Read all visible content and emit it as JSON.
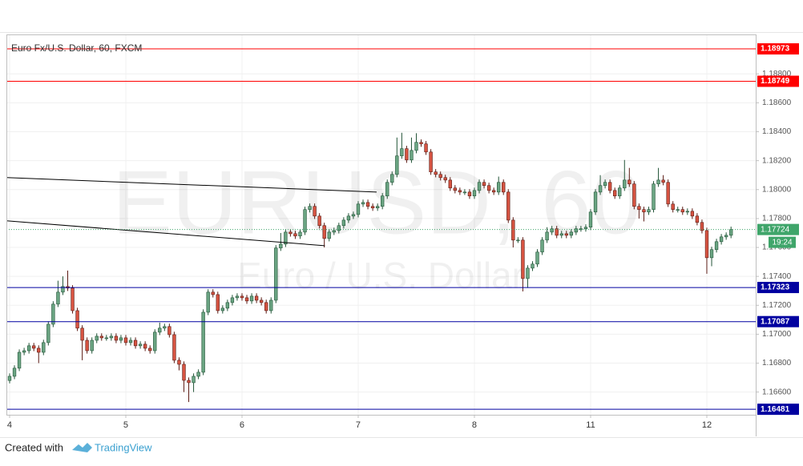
{
  "chart_data": {
    "type": "candlestick",
    "title": "Euro Fx/U.S. Dollar, 60, FXCM",
    "watermark": "EURUSD, 60",
    "watermark_subtitle": "Euro / U.S. Dollar",
    "up_color": "#6ba583",
    "down_color": "#d75442",
    "grid": true,
    "xlim": [
      -0.66,
      154.1
    ],
    "xticks": [
      {
        "value": 0,
        "label": "4"
      },
      {
        "value": 24,
        "label": "5"
      },
      {
        "value": 48,
        "label": "6"
      },
      {
        "value": 72,
        "label": "7"
      },
      {
        "value": 96,
        "label": "8"
      },
      {
        "value": 120,
        "label": "11"
      },
      {
        "value": 144,
        "label": "12"
      }
    ],
    "ylim": [
      1.16443,
      1.19073
    ],
    "yticks": [
      {
        "value": 1.166,
        "label": "1.16600"
      },
      {
        "value": 1.168,
        "label": "1.16800"
      },
      {
        "value": 1.17,
        "label": "1.17000"
      },
      {
        "value": 1.172,
        "label": "1.17200"
      },
      {
        "value": 1.174,
        "label": "1.17400"
      },
      {
        "value": 1.176,
        "label": "1.17600"
      },
      {
        "value": 1.178,
        "label": "1.17800"
      },
      {
        "value": 1.18,
        "label": "1.18000"
      },
      {
        "value": 1.182,
        "label": "1.18200"
      },
      {
        "value": 1.184,
        "label": "1.18400"
      },
      {
        "value": 1.186,
        "label": "1.18600"
      },
      {
        "value": 1.188,
        "label": "1.18800"
      }
    ],
    "x": [
      0,
      1,
      2,
      3,
      4,
      5,
      6,
      7,
      8,
      9,
      10,
      11,
      12,
      13,
      14,
      15,
      16,
      17,
      18,
      19,
      20,
      21,
      22,
      23,
      24,
      25,
      26,
      27,
      28,
      29,
      30,
      31,
      32,
      33,
      34,
      35,
      36,
      37,
      38,
      39,
      40,
      41,
      42,
      43,
      44,
      45,
      46,
      47,
      48,
      49,
      50,
      51,
      52,
      53,
      54,
      55,
      56,
      57,
      58,
      59,
      60,
      61,
      62,
      63,
      64,
      65,
      66,
      67,
      68,
      69,
      70,
      71,
      72,
      73,
      74,
      75,
      76,
      77,
      78,
      79,
      80,
      81,
      82,
      83,
      84,
      85,
      86,
      87,
      88,
      89,
      90,
      91,
      92,
      93,
      94,
      95,
      96,
      97,
      98,
      99,
      100,
      101,
      102,
      103,
      104,
      105,
      106,
      107,
      108,
      109,
      110,
      111,
      112,
      113,
      114,
      115,
      116,
      117,
      118,
      119,
      120,
      121,
      122,
      123,
      124,
      125,
      126,
      127,
      128,
      129,
      130,
      131,
      132,
      133,
      134,
      135,
      136,
      137,
      138,
      139,
      140,
      141,
      142,
      143,
      144,
      145,
      146,
      147,
      148,
      149
    ],
    "open": [
      1.1668,
      1.16709,
      1.16765,
      1.16875,
      1.16886,
      1.1692,
      1.16903,
      1.16875,
      1.16942,
      1.17069,
      1.17208,
      1.17291,
      1.1733,
      1.17319,
      1.17163,
      1.17042,
      1.16958,
      1.16886,
      1.16958,
      1.16986,
      1.16975,
      1.16975,
      1.16986,
      1.16958,
      1.16975,
      1.16942,
      1.16958,
      1.1692,
      1.16931,
      1.16903,
      1.16886,
      1.17014,
      1.17042,
      1.17053,
      1.16997,
      1.1682,
      1.16792,
      1.16681,
      1.16665,
      1.16709,
      1.16737,
      1.17152,
      1.17291,
      1.17274,
      1.17163,
      1.1718,
      1.17219,
      1.17252,
      1.17263,
      1.17252,
      1.1723,
      1.17263,
      1.17235,
      1.17219,
      1.17163,
      1.17235,
      1.17596,
      1.17623,
      1.17706,
      1.17695,
      1.17679,
      1.17706,
      1.17862,
      1.17884,
      1.17817,
      1.17751,
      1.17662,
      1.17706,
      1.17717,
      1.17751,
      1.17789,
      1.17817,
      1.17828,
      1.179,
      1.17911,
      1.17884,
      1.17873,
      1.17884,
      1.17956,
      1.1805,
      1.18105,
      1.18233,
      1.18283,
      1.18205,
      1.18271,
      1.18327,
      1.18316,
      1.1826,
      1.18122,
      1.18105,
      1.18083,
      1.18066,
      1.18011,
      1.17994,
      1.17983,
      1.17983,
      1.17956,
      1.17994,
      1.1805,
      1.18028,
      1.17994,
      1.17983,
      1.1805,
      1.17983,
      1.17789,
      1.17651,
      1.17651,
      1.17385,
      1.17457,
      1.17485,
      1.17568,
      1.17651,
      1.17706,
      1.17729,
      1.17684,
      1.17695,
      1.17684,
      1.17706,
      1.17729,
      1.17729,
      1.1774,
      1.17845,
      1.17983,
      1.18028,
      1.1805,
      1.17994,
      1.17956,
      1.18011,
      1.18066,
      1.18039,
      1.17884,
      1.17862,
      1.17845,
      1.17862,
      1.18039,
      1.18066,
      1.1805,
      1.179,
      1.17862,
      1.17862,
      1.17845,
      1.1785,
      1.17817,
      1.17773,
      1.17717,
      1.17529,
      1.17585,
      1.1764,
      1.17673,
      1.17684
    ],
    "high": [
      1.16729,
      1.16785,
      1.16895,
      1.16906,
      1.1694,
      1.1694,
      1.16923,
      1.16962,
      1.17089,
      1.17228,
      1.1737,
      1.174,
      1.1744,
      1.17339,
      1.17183,
      1.17062,
      1.16978,
      1.16978,
      1.17006,
      1.17006,
      1.16995,
      1.17006,
      1.17006,
      1.16995,
      1.16995,
      1.16978,
      1.16978,
      1.16951,
      1.16951,
      1.16923,
      1.17034,
      1.1708,
      1.17073,
      1.17073,
      1.17017,
      1.1684,
      1.16812,
      1.16701,
      1.16729,
      1.16757,
      1.17172,
      1.17311,
      1.17311,
      1.17294,
      1.172,
      1.17239,
      1.17272,
      1.17283,
      1.17283,
      1.17272,
      1.17283,
      1.17283,
      1.17255,
      1.17239,
      1.17255,
      1.17616,
      1.177,
      1.17726,
      1.17726,
      1.17715,
      1.17726,
      1.17882,
      1.17904,
      1.17904,
      1.17837,
      1.17771,
      1.17726,
      1.17737,
      1.17771,
      1.17809,
      1.17837,
      1.17848,
      1.1792,
      1.17931,
      1.17931,
      1.17904,
      1.17904,
      1.17976,
      1.1807,
      1.18125,
      1.1836,
      1.18393,
      1.18303,
      1.1836,
      1.1839,
      1.18347,
      1.18336,
      1.1828,
      1.18142,
      1.18125,
      1.18103,
      1.18086,
      1.18031,
      1.18014,
      1.18003,
      1.18003,
      1.18014,
      1.1807,
      1.1807,
      1.18048,
      1.18014,
      1.1809,
      1.1807,
      1.18003,
      1.17809,
      1.17671,
      1.17671,
      1.17477,
      1.17505,
      1.17588,
      1.17671,
      1.1774,
      1.17749,
      1.17749,
      1.17715,
      1.17715,
      1.17726,
      1.17749,
      1.17749,
      1.1776,
      1.17865,
      1.18003,
      1.181,
      1.1807,
      1.1807,
      1.18014,
      1.18031,
      1.18205,
      1.1815,
      1.18059,
      1.17904,
      1.17882,
      1.17882,
      1.18059,
      1.1815,
      1.181,
      1.1807,
      1.1792,
      1.17882,
      1.17882,
      1.1787,
      1.1787,
      1.17837,
      1.17793,
      1.17737,
      1.17605,
      1.1766,
      1.17693,
      1.17704,
      1.17744
    ],
    "low": [
      1.1666,
      1.16689,
      1.16745,
      1.16855,
      1.16866,
      1.16883,
      1.168,
      1.16855,
      1.16922,
      1.17049,
      1.17188,
      1.17271,
      1.17299,
      1.17143,
      1.17022,
      1.1682,
      1.16866,
      1.16866,
      1.16938,
      1.16955,
      1.16955,
      1.16955,
      1.16938,
      1.16938,
      1.16922,
      1.16922,
      1.169,
      1.169,
      1.16883,
      1.16866,
      1.16866,
      1.16994,
      1.17022,
      1.16977,
      1.168,
      1.1675,
      1.166,
      1.16531,
      1.166,
      1.16689,
      1.16717,
      1.17132,
      1.17254,
      1.17143,
      1.17143,
      1.1716,
      1.17199,
      1.17232,
      1.17232,
      1.1721,
      1.1721,
      1.17215,
      1.17199,
      1.17143,
      1.17143,
      1.17215,
      1.17576,
      1.17603,
      1.17675,
      1.17659,
      1.17659,
      1.17686,
      1.17842,
      1.17797,
      1.17731,
      1.176,
      1.17642,
      1.17686,
      1.17697,
      1.17731,
      1.17769,
      1.17797,
      1.17808,
      1.1788,
      1.17864,
      1.17853,
      1.17853,
      1.17864,
      1.17936,
      1.1803,
      1.18085,
      1.18213,
      1.18185,
      1.18185,
      1.18251,
      1.18296,
      1.1824,
      1.18102,
      1.18085,
      1.18063,
      1.18046,
      1.17991,
      1.17974,
      1.17963,
      1.17963,
      1.17936,
      1.17936,
      1.17974,
      1.18008,
      1.17974,
      1.17963,
      1.17963,
      1.17963,
      1.17769,
      1.176,
      1.17631,
      1.17296,
      1.1732,
      1.17437,
      1.17465,
      1.17548,
      1.17631,
      1.17686,
      1.17664,
      1.17664,
      1.17664,
      1.17664,
      1.17686,
      1.17709,
      1.17709,
      1.1772,
      1.17825,
      1.17963,
      1.18008,
      1.17974,
      1.17936,
      1.17936,
      1.17991,
      1.18019,
      1.17864,
      1.178,
      1.1778,
      1.17825,
      1.17842,
      1.18019,
      1.1803,
      1.1788,
      1.17842,
      1.17842,
      1.17825,
      1.17825,
      1.17797,
      1.17753,
      1.17697,
      1.17418,
      1.1747,
      1.17565,
      1.1762,
      1.17653,
      1.17664
    ],
    "close": [
      1.16709,
      1.16765,
      1.16875,
      1.16886,
      1.1692,
      1.16903,
      1.16875,
      1.16942,
      1.17069,
      1.17208,
      1.17291,
      1.1733,
      1.17319,
      1.17163,
      1.17042,
      1.16958,
      1.16886,
      1.16958,
      1.16986,
      1.16975,
      1.16975,
      1.16986,
      1.16958,
      1.16975,
      1.16942,
      1.16958,
      1.1692,
      1.16931,
      1.16903,
      1.16886,
      1.17014,
      1.17042,
      1.17053,
      1.16997,
      1.1682,
      1.16792,
      1.16681,
      1.16665,
      1.16709,
      1.16737,
      1.17152,
      1.17291,
      1.17274,
      1.17163,
      1.1718,
      1.17219,
      1.17252,
      1.17263,
      1.17252,
      1.1723,
      1.17263,
      1.17235,
      1.17219,
      1.17163,
      1.17235,
      1.17596,
      1.17623,
      1.17706,
      1.17695,
      1.17679,
      1.17706,
      1.17862,
      1.17884,
      1.17817,
      1.17751,
      1.17662,
      1.17706,
      1.17717,
      1.17751,
      1.17789,
      1.17817,
      1.17828,
      1.179,
      1.17911,
      1.17884,
      1.17873,
      1.17884,
      1.17956,
      1.1805,
      1.18105,
      1.18233,
      1.18283,
      1.18205,
      1.18271,
      1.18327,
      1.18316,
      1.1826,
      1.18122,
      1.18105,
      1.18083,
      1.18066,
      1.18011,
      1.17994,
      1.17983,
      1.17983,
      1.17956,
      1.17994,
      1.1805,
      1.18028,
      1.17994,
      1.17983,
      1.1805,
      1.17983,
      1.17789,
      1.17651,
      1.17651,
      1.17385,
      1.17457,
      1.17485,
      1.17568,
      1.17651,
      1.17706,
      1.17729,
      1.17684,
      1.17695,
      1.17684,
      1.17706,
      1.17729,
      1.17729,
      1.1774,
      1.17845,
      1.17983,
      1.18028,
      1.1805,
      1.17994,
      1.17956,
      1.18011,
      1.18066,
      1.18039,
      1.17884,
      1.17862,
      1.17845,
      1.17862,
      1.18039,
      1.18066,
      1.1805,
      1.179,
      1.17862,
      1.17862,
      1.17845,
      1.1785,
      1.17817,
      1.17773,
      1.17717,
      1.17529,
      1.17585,
      1.1764,
      1.17673,
      1.17684,
      1.17724
    ],
    "levels": [
      {
        "value": 1.18973,
        "color": "#ff0000"
      },
      {
        "value": 1.18749,
        "color": "#ff0000"
      },
      {
        "value": 1.17323,
        "color": "#0000a0"
      },
      {
        "value": 1.17087,
        "color": "#0000a0"
      },
      {
        "value": 1.16481,
        "color": "#0000a0"
      }
    ],
    "last_price": {
      "value": 1.17724,
      "countdown": "19:24",
      "color": "#3fa56a"
    },
    "trendlines": [
      {
        "x": [
          -0.66,
          75.8
        ],
        "y": [
          1.18083,
          1.17983
        ],
        "color": "#000000"
      },
      {
        "x": [
          -0.66,
          65.1
        ],
        "y": [
          1.17784,
          1.17612
        ],
        "color": "#000000"
      }
    ]
  },
  "footer": {
    "created_with": "Created with",
    "brand": "TradingView"
  }
}
